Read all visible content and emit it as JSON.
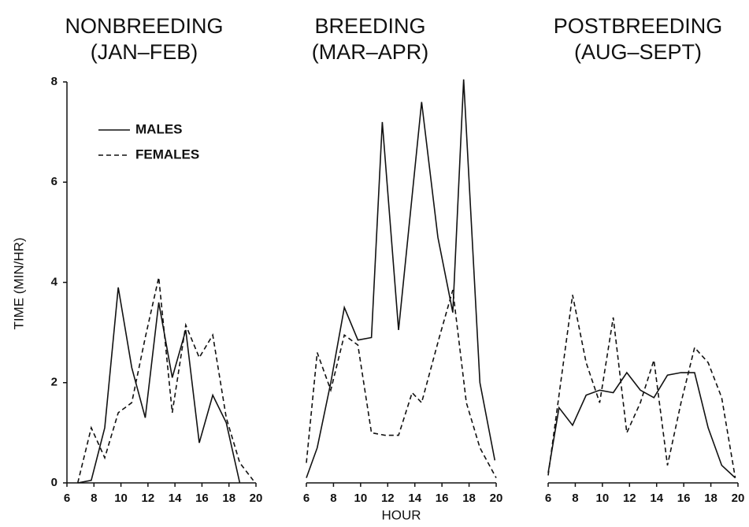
{
  "chart_data": [
    {
      "type": "line",
      "title": "NONBREEDING",
      "subtitle": "(JAN–FEB)",
      "y_label": "TIME (MIN/HR)",
      "xlim": [
        6,
        20
      ],
      "xticks": [
        6,
        8,
        10,
        12,
        14,
        16,
        18,
        20
      ],
      "ylim": [
        0,
        8
      ],
      "yticks": [
        0,
        2,
        4,
        6,
        8
      ],
      "legend": "upper left",
      "series": [
        {
          "name": "MALES",
          "style": "solid",
          "color": "#111",
          "x": [
            6.8,
            7.8,
            8.8,
            9.8,
            10.8,
            11.8,
            12.8,
            13.8,
            14.8,
            15.8,
            16.8,
            17.8,
            18.8
          ],
          "values": [
            0,
            0.05,
            1.1,
            3.9,
            2.3,
            1.3,
            3.6,
            2.1,
            3.05,
            0.8,
            1.75,
            1.2,
            0
          ]
        },
        {
          "name": "FEMALES",
          "style": "dashed",
          "color": "#111",
          "x": [
            6.8,
            7.8,
            8.8,
            9.8,
            10.8,
            11.8,
            12.8,
            13.8,
            14.8,
            15.8,
            16.8,
            17.8,
            18.8,
            19.8
          ],
          "values": [
            0,
            1.1,
            0.5,
            1.4,
            1.6,
            2.9,
            4.1,
            1.4,
            3.15,
            2.5,
            2.95,
            1.3,
            0.4,
            0.05
          ]
        }
      ]
    },
    {
      "type": "line",
      "title": "BREEDING",
      "subtitle": "(MAR–APR)",
      "x_label": "HOUR",
      "xlim": [
        6,
        20
      ],
      "xticks": [
        6,
        8,
        10,
        12,
        14,
        16,
        18,
        20
      ],
      "ylim": [
        0,
        8
      ],
      "series": [
        {
          "style": "solid",
          "color": "#111",
          "x": [
            6,
            6.8,
            7.8,
            8.8,
            9.8,
            10.8,
            11.6,
            12.8,
            14.5,
            15.7,
            16.8,
            17.6,
            18.8,
            19.9
          ],
          "values": [
            0.1,
            0.7,
            2.0,
            3.5,
            2.85,
            2.9,
            7.2,
            3.05,
            7.6,
            4.9,
            3.4,
            8.05,
            2.0,
            0.45
          ]
        },
        {
          "style": "dashed",
          "color": "#111",
          "x": [
            6,
            6.8,
            7.8,
            8.8,
            9.8,
            10.8,
            11.8,
            12.8,
            13.8,
            14.5,
            15.8,
            16.8,
            17.8,
            18.8,
            20
          ],
          "values": [
            0.4,
            2.6,
            1.85,
            2.95,
            2.75,
            1.0,
            0.95,
            0.95,
            1.8,
            1.6,
            2.9,
            3.85,
            1.6,
            0.7,
            0.1
          ]
        }
      ]
    },
    {
      "type": "line",
      "title": "POSTBREEDING",
      "subtitle": "(AUG–SEPT)",
      "xlim": [
        6,
        20
      ],
      "xticks": [
        6,
        8,
        10,
        12,
        14,
        16,
        18,
        20
      ],
      "ylim": [
        0,
        8
      ],
      "series": [
        {
          "style": "solid",
          "color": "#111",
          "x": [
            6,
            6.8,
            7.8,
            8.8,
            9.8,
            10.8,
            11.8,
            12.8,
            13.8,
            14.8,
            15.8,
            16.8,
            17.8,
            18.8,
            19.8
          ],
          "values": [
            0.2,
            1.5,
            1.15,
            1.75,
            1.85,
            1.8,
            2.2,
            1.85,
            1.7,
            2.15,
            2.2,
            2.2,
            1.1,
            0.35,
            0.1
          ]
        },
        {
          "style": "dashed",
          "color": "#111",
          "x": [
            6,
            7.8,
            8.8,
            9.8,
            10.8,
            11.8,
            12.8,
            13.8,
            14.8,
            15.8,
            16.8,
            17.8,
            18.8,
            19.8
          ],
          "values": [
            0.15,
            3.75,
            2.4,
            1.6,
            3.3,
            1.0,
            1.6,
            2.45,
            0.35,
            1.6,
            2.7,
            2.4,
            1.7,
            0.1
          ]
        }
      ]
    }
  ]
}
